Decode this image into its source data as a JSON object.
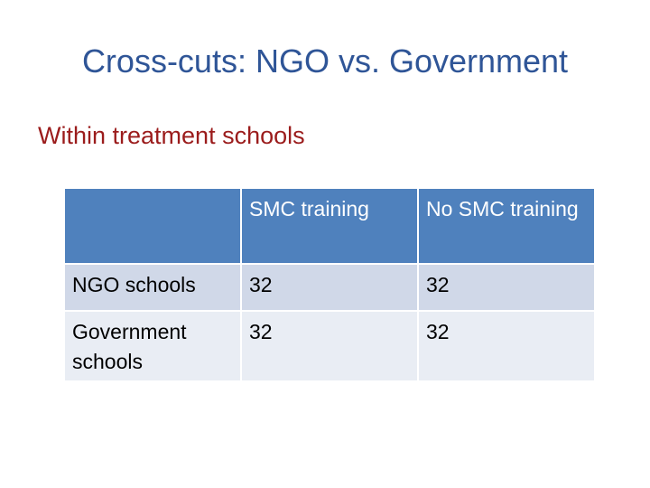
{
  "slide": {
    "title": "Cross-cuts: NGO vs. Government",
    "subtitle": "Within treatment schools"
  },
  "table": {
    "header": [
      "",
      "SMC training",
      "No SMC training"
    ],
    "rows": [
      {
        "label": "NGO schools",
        "values": [
          "32",
          "32"
        ]
      },
      {
        "label": "Government schools",
        "values": [
          "32",
          "32"
        ]
      }
    ]
  },
  "colors": {
    "title": "#2f5597",
    "subtitle": "#9b1c1c",
    "header_fill": "#4f81bd",
    "row1_fill": "#d0d8e8",
    "row2_fill": "#e9edf4"
  }
}
